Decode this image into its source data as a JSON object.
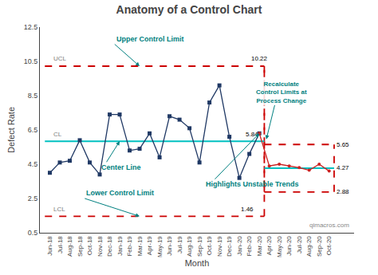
{
  "chart_data": {
    "type": "line",
    "title": "Anatomy of a Control Chart",
    "xlabel": "Month",
    "ylabel": "Defect Rate",
    "categories": [
      "Jun-18",
      "Jul-18",
      "Aug-18",
      "Sep-18",
      "Oct-18",
      "Nov-18",
      "Dec-18",
      "Jan-19",
      "Feb-19",
      "Mar-19",
      "Apr-19",
      "May-19",
      "Jun-19",
      "Jul-19",
      "Aug-19",
      "Sep-19",
      "Oct-19",
      "Nov-19",
      "Dec-19",
      "Jan-20",
      "Feb-20",
      "Mar-20",
      "Apr-20",
      "May-20",
      "Jun-20",
      "Jul-20",
      "Aug-20",
      "Sep-20",
      "Oct-20"
    ],
    "series": [
      {
        "color": "#1F3864",
        "marker": "square",
        "values": [
          4.0,
          4.6,
          4.7,
          5.9,
          4.6,
          3.9,
          7.4,
          7.4,
          5.3,
          5.4,
          6.3,
          4.9,
          7.3,
          7.1,
          6.6,
          4.6,
          8.1,
          9.1,
          6.1,
          3.7,
          5.1,
          6.3,
          null,
          null,
          null,
          null,
          null,
          null,
          null
        ]
      },
      {
        "color": "#CC2222",
        "marker": "circle",
        "values": [
          null,
          null,
          null,
          null,
          null,
          null,
          null,
          null,
          null,
          null,
          null,
          null,
          null,
          null,
          null,
          null,
          null,
          null,
          null,
          null,
          null,
          6.3,
          4.4,
          4.5,
          4.4,
          4.3,
          4.15,
          4.5,
          4.1
        ]
      }
    ],
    "control_limits": {
      "labels": [
        "UCL",
        "CL",
        "LCL"
      ],
      "limit_color": "#CC0000",
      "center_color": "#00C0C0",
      "phases": [
        {
          "from": "Jun-18",
          "to": "Mar-20",
          "ucl": 10.22,
          "cl": 5.84,
          "lcl": 1.46
        },
        {
          "from": "Apr-20",
          "to": "Oct-20",
          "ucl": 5.65,
          "cl": 4.27,
          "lcl": 2.88
        }
      ]
    },
    "annotations": {
      "color": "#008080",
      "texts": [
        "Upper Control Limit",
        "Center Line",
        "Lower Control Limit",
        "Highlights Unstable Trends",
        "Recalculate\nControl Limits at\nProcess Change"
      ]
    },
    "watermark": "qimacros.com",
    "ylim": [
      0.5,
      12.5
    ],
    "yticks": [
      0.5,
      2.5,
      4.5,
      6.5,
      8.5,
      10.5,
      12.5
    ],
    "grid": false
  }
}
